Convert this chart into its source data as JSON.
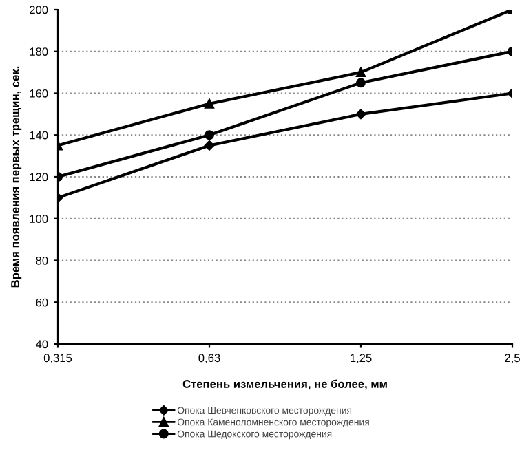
{
  "chart_data": {
    "type": "line",
    "xlabel": "Степень измельчения, не более, мм",
    "ylabel": "Время появления первых трещин, сек.",
    "categories": [
      "0,315",
      "0,63",
      "1,25",
      "2,5"
    ],
    "series": [
      {
        "name": "Опока Шевченковского месторождения",
        "color": "#000000",
        "marker": "diamond",
        "values": [
          110,
          135,
          150,
          160
        ]
      },
      {
        "name": "Опока Каменоломненского месторождения",
        "color": "#000000",
        "marker": "triangle",
        "values": [
          135,
          155,
          170,
          200
        ]
      },
      {
        "name": "Опока Шедокского месторождения",
        "color": "#000000",
        "marker": "circle",
        "values": [
          120,
          140,
          165,
          180
        ]
      }
    ],
    "ylim": [
      40,
      200
    ],
    "yticks": [
      40,
      60,
      80,
      100,
      120,
      140,
      160,
      180,
      200
    ],
    "grid": "y",
    "legend": "bottom",
    "line_style": "solid"
  }
}
